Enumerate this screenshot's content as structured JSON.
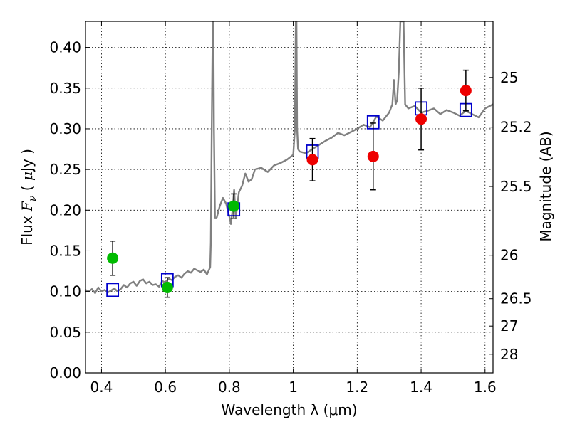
{
  "chart_data": {
    "type": "scatter",
    "title": "",
    "xlabel": "Wavelength  λ (μm)",
    "ylabel_parts": [
      "Flux",
      "F",
      "ν",
      "(",
      "μ",
      "Jy",
      ")"
    ],
    "ylabel": "Flux  Fν  ( μJy )",
    "y2label": "Magnitude (AB)",
    "xlim": [
      0.35,
      1.625
    ],
    "ylim": [
      0.0,
      0.432
    ],
    "grid": true,
    "x_ticks": [
      0.4,
      0.6,
      0.8,
      1.0,
      1.2,
      1.4,
      1.6
    ],
    "x_tick_labels": [
      "0.4",
      "0.6",
      "0.8",
      "1",
      "1.2",
      "1.4",
      "1.6"
    ],
    "y_ticks": [
      0.0,
      0.05,
      0.1,
      0.15,
      0.2,
      0.25,
      0.3,
      0.35,
      0.4
    ],
    "y_tick_labels": [
      "0.00",
      "0.05",
      "0.10",
      "0.15",
      "0.20",
      "0.25",
      "0.30",
      "0.35",
      "0.40"
    ],
    "mag_ticks": [
      {
        "mag": 25,
        "label": "25"
      },
      {
        "mag": 25.2,
        "label": "25.2"
      },
      {
        "mag": 25.5,
        "label": "25.5"
      },
      {
        "mag": 26,
        "label": "26"
      },
      {
        "mag": 26.5,
        "label": "26.5"
      },
      {
        "mag": 27,
        "label": "27"
      },
      {
        "mag": 28,
        "label": "28"
      }
    ],
    "series": [
      {
        "name": "model-spectrum",
        "kind": "line",
        "color": "#808080",
        "x": [
          0.35,
          0.36,
          0.37,
          0.38,
          0.39,
          0.4,
          0.41,
          0.42,
          0.43,
          0.44,
          0.45,
          0.46,
          0.47,
          0.48,
          0.49,
          0.5,
          0.51,
          0.52,
          0.53,
          0.54,
          0.55,
          0.56,
          0.57,
          0.58,
          0.59,
          0.6,
          0.61,
          0.62,
          0.63,
          0.64,
          0.65,
          0.66,
          0.67,
          0.68,
          0.69,
          0.7,
          0.71,
          0.72,
          0.73,
          0.74,
          0.742,
          0.745,
          0.748,
          0.75,
          0.752,
          0.755,
          0.76,
          0.77,
          0.78,
          0.79,
          0.8,
          0.805,
          0.81,
          0.815,
          0.82,
          0.83,
          0.84,
          0.85,
          0.86,
          0.87,
          0.88,
          0.9,
          0.92,
          0.94,
          0.96,
          0.98,
          1.0,
          1.005,
          1.008,
          1.01,
          1.012,
          1.015,
          1.02,
          1.04,
          1.06,
          1.08,
          1.1,
          1.12,
          1.14,
          1.16,
          1.18,
          1.2,
          1.22,
          1.24,
          1.26,
          1.28,
          1.3,
          1.31,
          1.315,
          1.32,
          1.325,
          1.33,
          1.335,
          1.34,
          1.345,
          1.35,
          1.36,
          1.38,
          1.4,
          1.42,
          1.44,
          1.46,
          1.48,
          1.5,
          1.52,
          1.54,
          1.56,
          1.58,
          1.6,
          1.625
        ],
        "y": [
          0.102,
          0.1,
          0.103,
          0.098,
          0.105,
          0.1,
          0.102,
          0.099,
          0.101,
          0.104,
          0.1,
          0.103,
          0.108,
          0.105,
          0.11,
          0.112,
          0.107,
          0.113,
          0.115,
          0.11,
          0.112,
          0.108,
          0.109,
          0.106,
          0.113,
          0.111,
          0.116,
          0.114,
          0.118,
          0.12,
          0.117,
          0.122,
          0.125,
          0.123,
          0.128,
          0.126,
          0.124,
          0.127,
          0.121,
          0.13,
          0.16,
          0.3,
          0.432,
          0.432,
          0.3,
          0.19,
          0.19,
          0.205,
          0.215,
          0.208,
          0.192,
          0.183,
          0.2,
          0.225,
          0.19,
          0.222,
          0.23,
          0.245,
          0.235,
          0.238,
          0.25,
          0.252,
          0.247,
          0.255,
          0.258,
          0.262,
          0.268,
          0.3,
          0.432,
          0.432,
          0.3,
          0.275,
          0.272,
          0.27,
          0.275,
          0.28,
          0.285,
          0.289,
          0.295,
          0.292,
          0.296,
          0.3,
          0.305,
          0.302,
          0.315,
          0.31,
          0.32,
          0.33,
          0.36,
          0.33,
          0.335,
          0.37,
          0.432,
          0.432,
          0.432,
          0.33,
          0.325,
          0.328,
          0.32,
          0.322,
          0.325,
          0.318,
          0.323,
          0.32,
          0.316,
          0.322,
          0.318,
          0.314,
          0.325,
          0.33
        ]
      },
      {
        "name": "model-photometry",
        "kind": "open-square",
        "color": "#0000cc",
        "x": [
          0.435,
          0.606,
          0.814,
          1.06,
          1.25,
          1.4,
          1.54
        ],
        "y": [
          0.102,
          0.114,
          0.201,
          0.272,
          0.308,
          0.325,
          0.323
        ]
      },
      {
        "name": "observed-green",
        "kind": "filled-circle",
        "color": "#00bb00",
        "x": [
          0.435,
          0.606,
          0.814
        ],
        "y": [
          0.141,
          0.105,
          0.205
        ],
        "err": [
          0.021,
          0.012,
          0.015
        ]
      },
      {
        "name": "observed-red",
        "kind": "filled-circle",
        "color": "#ee0000",
        "x": [
          1.06,
          1.25,
          1.4,
          1.54
        ],
        "y": [
          0.262,
          0.266,
          0.312,
          0.347
        ],
        "err": [
          0.026,
          0.041,
          0.038,
          0.025
        ]
      }
    ]
  }
}
